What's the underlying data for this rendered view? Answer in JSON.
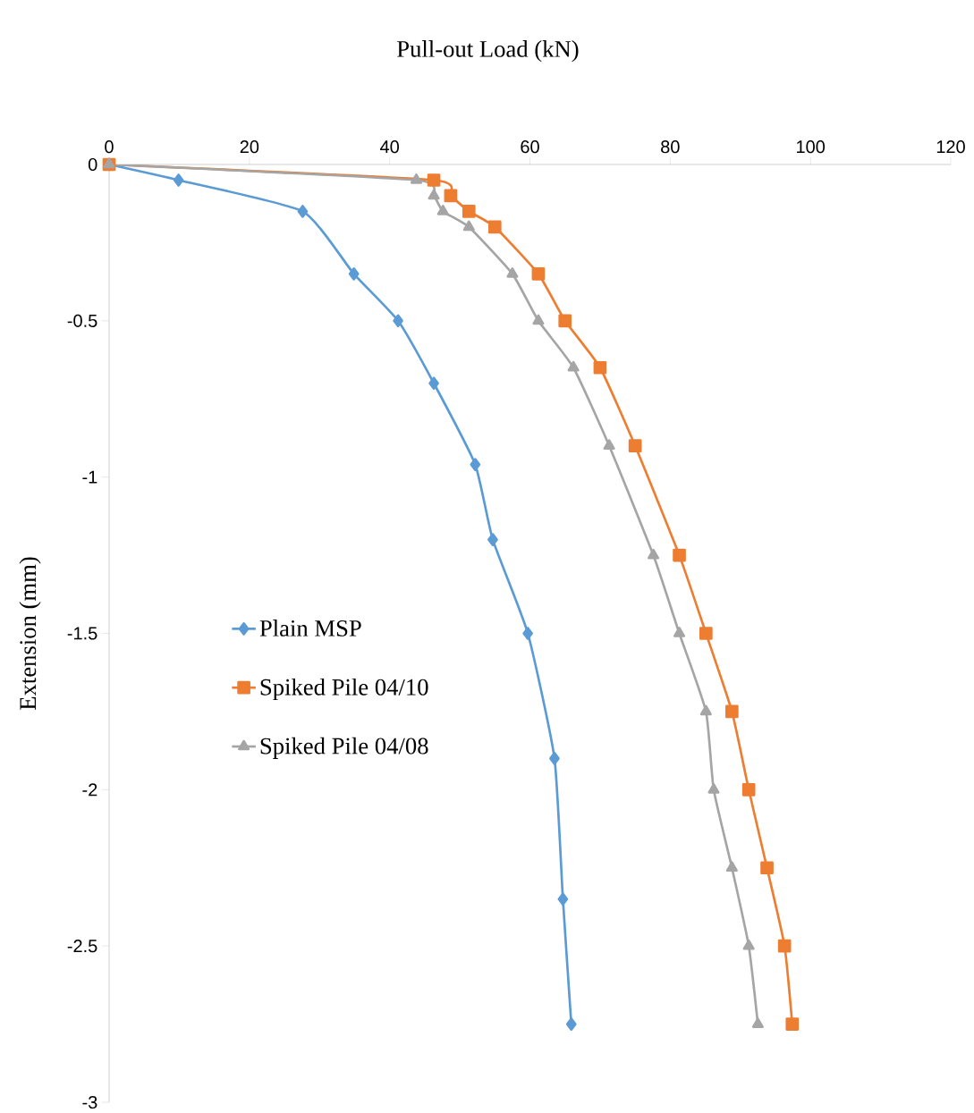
{
  "chart_data": {
    "type": "line",
    "xlabel": "Pull-out Load (kN)",
    "ylabel": "Extension (mm)",
    "xlim": [
      0,
      120
    ],
    "xticks": [
      0,
      20,
      40,
      60,
      80,
      100,
      120
    ],
    "ylim": [
      -3,
      0
    ],
    "yticks": [
      -3,
      -2.5,
      -2,
      -1.5,
      -1,
      -0.5,
      0
    ],
    "grid": false,
    "legend": "left",
    "line_style": "solid",
    "series": [
      {
        "name": "Plain MSP",
        "color": "#5b9bd5",
        "marker": "diamond",
        "x": [
          0,
          9.9,
          27.6,
          34.9,
          41.2,
          46.3,
          52.2,
          54.7,
          59.7,
          63.5,
          64.7,
          65.9
        ],
        "values": [
          0,
          -0.05,
          -0.15,
          -0.35,
          -0.5,
          -0.7,
          -0.96,
          -1.2,
          -1.5,
          -1.9,
          -2.35,
          -2.75
        ]
      },
      {
        "name": "Spiked Pile 04/10",
        "color": "#ed7d31",
        "marker": "square",
        "x": [
          0,
          46.3,
          48.7,
          51.3,
          55,
          61.2,
          65,
          70,
          75,
          81.3,
          85.1,
          88.8,
          91.2,
          93.8,
          96.3,
          97.4
        ],
        "values": [
          0,
          -0.05,
          -0.1,
          -0.15,
          -0.2,
          -0.35,
          -0.5,
          -0.65,
          -0.9,
          -1.25,
          -1.5,
          -1.75,
          -2,
          -2.25,
          -2.5,
          -2.75
        ]
      },
      {
        "name": "Spiked Pile 04/08",
        "color": "#a5a5a5",
        "marker": "triangle",
        "x": [
          0,
          43.8,
          46.3,
          47.6,
          51.3,
          57.5,
          61.2,
          66.2,
          71.3,
          77.6,
          81.3,
          85.1,
          86.2,
          88.8,
          91.2,
          92.5
        ],
        "values": [
          0,
          -0.05,
          -0.1,
          -0.15,
          -0.2,
          -0.35,
          -0.5,
          -0.65,
          -0.9,
          -1.25,
          -1.5,
          -1.75,
          -2,
          -2.25,
          -2.5,
          -2.75
        ]
      }
    ]
  }
}
